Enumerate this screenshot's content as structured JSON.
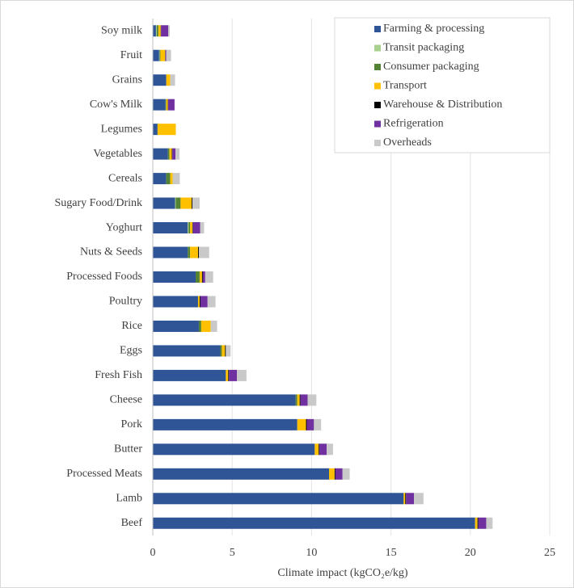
{
  "chart_data": {
    "type": "stacked-barh",
    "xlabel": "Climate impact (kgCO₂e/kg)",
    "categories": [
      "Soy milk",
      "Fruit",
      "Grains",
      "Cow's Milk",
      "Legumes",
      "Vegetables",
      "Cereals",
      "Sugary Food/Drink",
      "Yoghurt",
      "Nuts & Seeds",
      "Processed Foods",
      "Poultry",
      "Rice",
      "Eggs",
      "Fresh Fish",
      "Cheese",
      "Pork",
      "Butter",
      "Processed Meats",
      "Lamb",
      "Beef"
    ],
    "series": [
      {
        "name": "Farming & processing",
        "color": "#2f5597",
        "values": [
          0.2,
          0.4,
          0.85,
          0.8,
          0.3,
          0.95,
          0.85,
          1.4,
          2.2,
          2.2,
          2.7,
          2.85,
          2.9,
          4.25,
          4.6,
          9.0,
          9.1,
          10.2,
          11.1,
          15.8,
          20.3
        ]
      },
      {
        "name": "Transit packaging",
        "color": "#a9d18e",
        "values": [
          0.05,
          0.03,
          0,
          0,
          0,
          0,
          0,
          0.05,
          0.05,
          0,
          0,
          0,
          0,
          0,
          0,
          0,
          0,
          0,
          0,
          0,
          0
        ]
      },
      {
        "name": "Consumer packaging",
        "color": "#548235",
        "values": [
          0.1,
          0.05,
          0,
          0.05,
          0,
          0.1,
          0.25,
          0.3,
          0.1,
          0.15,
          0.25,
          0,
          0.15,
          0.1,
          0,
          0.1,
          0,
          0,
          0,
          0,
          0
        ]
      },
      {
        "name": "Transport",
        "color": "#ffc000",
        "values": [
          0.15,
          0.3,
          0.25,
          0.1,
          1.15,
          0.15,
          0.15,
          0.7,
          0.15,
          0.5,
          0.15,
          0.1,
          0.6,
          0.2,
          0.15,
          0.15,
          0.55,
          0.25,
          0.35,
          0.1,
          0.15
        ]
      },
      {
        "name": "Warehouse & Distribution",
        "color": "#000000",
        "values": [
          0.02,
          0.02,
          0,
          0.02,
          0,
          0.03,
          0,
          0.05,
          0.03,
          0.05,
          0.05,
          0.05,
          0,
          0.05,
          0.05,
          0.05,
          0.05,
          0.05,
          0.05,
          0.05,
          0.05
        ]
      },
      {
        "name": "Refrigeration",
        "color": "#7030a0",
        "values": [
          0.45,
          0.05,
          0,
          0.4,
          0,
          0.2,
          0,
          0,
          0.45,
          0,
          0.15,
          0.45,
          0,
          0,
          0.5,
          0.45,
          0.45,
          0.45,
          0.45,
          0.5,
          0.5
        ]
      },
      {
        "name": "Overheads",
        "color": "#c9c9c9",
        "values": [
          0.1,
          0.3,
          0.3,
          0,
          0,
          0.25,
          0.45,
          0.45,
          0.25,
          0.65,
          0.5,
          0.5,
          0.4,
          0.3,
          0.6,
          0.55,
          0.45,
          0.4,
          0.45,
          0.6,
          0.4
        ]
      }
    ],
    "xlim": [
      0,
      25
    ],
    "xticks": [
      0,
      5,
      10,
      15,
      20,
      25
    ],
    "grid": true,
    "legend": "upper right"
  }
}
